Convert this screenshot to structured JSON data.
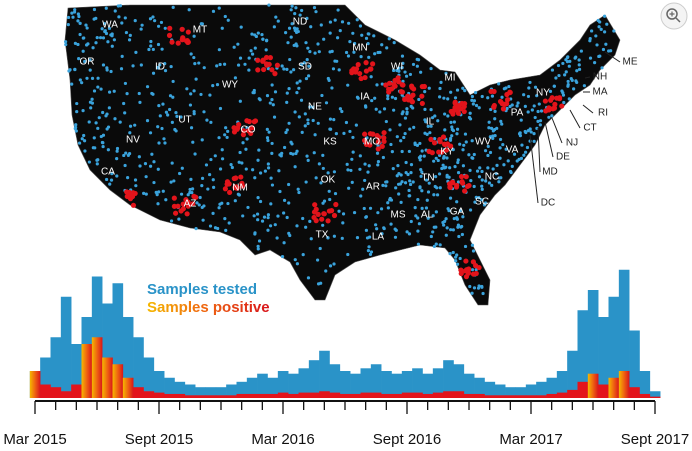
{
  "map": {
    "state_labels": [
      "WA",
      "MT",
      "ND",
      "OR",
      "ID",
      "SD",
      "MN",
      "WI",
      "MI",
      "ME",
      "NH",
      "MA",
      "NY",
      "RI",
      "CT",
      "PA",
      "NJ",
      "WY",
      "NE",
      "IA",
      "UT",
      "CO",
      "NV",
      "KS",
      "MO",
      "IL",
      "WV",
      "VA",
      "KY",
      "DE",
      "MD",
      "DC",
      "CA",
      "OK",
      "AR",
      "TN",
      "NC",
      "AZ",
      "NM",
      "SC",
      "MS",
      "AL",
      "GA",
      "TX",
      "LA"
    ]
  },
  "chart_data": {
    "type": "bar",
    "categories": [
      "Mar 2015",
      null,
      null,
      null,
      null,
      null,
      null,
      null,
      null,
      null,
      null,
      null,
      "Sept 2015",
      null,
      null,
      null,
      null,
      null,
      null,
      null,
      null,
      null,
      null,
      null,
      "Mar 2016",
      null,
      null,
      null,
      null,
      null,
      null,
      null,
      null,
      null,
      null,
      null,
      "Sept 2016",
      null,
      null,
      null,
      null,
      null,
      null,
      null,
      null,
      null,
      null,
      null,
      "Mar 2017",
      null,
      null,
      null,
      null,
      null,
      null,
      null,
      null,
      null,
      null,
      null,
      "Sept 2017"
    ],
    "series": [
      {
        "name": "Samples tested",
        "color": "#2a93c8",
        "values": [
          20,
          30,
          45,
          75,
          40,
          60,
          90,
          70,
          85,
          60,
          45,
          30,
          20,
          15,
          12,
          10,
          8,
          8,
          8,
          10,
          12,
          15,
          18,
          15,
          20,
          18,
          22,
          28,
          35,
          25,
          20,
          18,
          22,
          25,
          20,
          18,
          20,
          22,
          18,
          22,
          28,
          25,
          18,
          15,
          12,
          10,
          8,
          8,
          10,
          12,
          15,
          20,
          35,
          65,
          80,
          60,
          75,
          95,
          50,
          20,
          5
        ]
      },
      {
        "name": "Samples positive",
        "color": "#e3141b",
        "values": [
          20,
          10,
          8,
          5,
          10,
          40,
          45,
          30,
          25,
          15,
          8,
          5,
          4,
          3,
          3,
          2,
          2,
          2,
          2,
          2,
          3,
          3,
          3,
          3,
          4,
          3,
          4,
          4,
          5,
          4,
          3,
          3,
          4,
          4,
          3,
          3,
          4,
          4,
          3,
          4,
          5,
          5,
          3,
          3,
          2,
          2,
          2,
          2,
          2,
          2,
          3,
          4,
          6,
          12,
          18,
          10,
          15,
          20,
          8,
          3,
          1
        ]
      }
    ],
    "ylim": [
      0,
      100
    ]
  }
}
